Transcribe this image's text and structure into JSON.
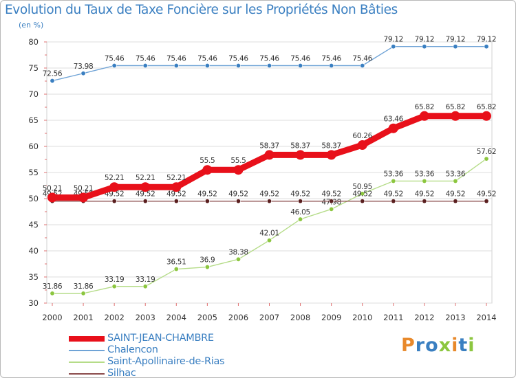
{
  "title": "Evolution du Taux de Taxe Foncière sur les Propriétés Non Bâties",
  "unit_label": "(en %)",
  "brand": {
    "text": "Proxiti",
    "letters": [
      {
        "ch": "P",
        "color": "#e8892b"
      },
      {
        "ch": "r",
        "color": "#3a7fc1"
      },
      {
        "ch": "o",
        "color": "#3a7fc1"
      },
      {
        "ch": "x",
        "color": "#8cc63f"
      },
      {
        "ch": "i",
        "color": "#e8892b"
      },
      {
        "ch": "t",
        "color": "#3a7fc1"
      },
      {
        "ch": "i",
        "color": "#8cc63f"
      }
    ]
  },
  "chart_data": {
    "type": "line",
    "title": "Evolution du Taux de Taxe Foncière sur les Propriétés Non Bâties",
    "ylabel": "(en %)",
    "xlabel": "",
    "ylim": [
      30,
      80
    ],
    "yticks": [
      30,
      35,
      40,
      45,
      50,
      55,
      60,
      65,
      70,
      75,
      80
    ],
    "categories": [
      "2000",
      "2001",
      "2002",
      "2003",
      "2004",
      "2005",
      "2006",
      "2007",
      "2008",
      "2009",
      "2010",
      "2011",
      "2012",
      "2013",
      "2014"
    ],
    "grid": "horizontal",
    "legend_position": "bottom-left",
    "series": [
      {
        "name": "Chalencon",
        "color": "#6fa3d6",
        "marker": "#3a7fc1",
        "values": [
          72.56,
          73.98,
          75.46,
          75.46,
          75.46,
          75.46,
          75.46,
          75.46,
          75.46,
          75.46,
          75.46,
          79.12,
          79.12,
          79.12,
          79.12
        ],
        "labels": [
          "72.56",
          "73.98",
          "75.46",
          "75.46",
          "75.46",
          "75.46",
          "75.46",
          "75.46",
          "75.46",
          "75.46",
          "75.46",
          "79.12",
          "79.12",
          "79.12",
          "79.12"
        ]
      },
      {
        "name": "Saint-Apollinaire-de-Rias",
        "color": "#b5dc88",
        "marker": "#8cc63f",
        "values": [
          31.86,
          31.86,
          33.19,
          33.19,
          36.51,
          36.9,
          38.38,
          42.01,
          46.05,
          47.98,
          50.95,
          53.36,
          53.36,
          53.36,
          57.62
        ],
        "labels": [
          "31.86",
          "31.86",
          "33.19",
          "33.19",
          "36.51",
          "36.9",
          "38.38",
          "42.01",
          "46.05",
          "47.98",
          "50.95",
          "53.36",
          "53.36",
          "53.36",
          "57.62"
        ]
      },
      {
        "name": "Silhac",
        "color": "#8a4a4a",
        "marker": "#5a1f1f",
        "values": [
          49.52,
          49.52,
          49.52,
          49.52,
          49.52,
          49.52,
          49.52,
          49.52,
          49.52,
          49.52,
          49.52,
          49.52,
          49.52,
          49.52,
          49.52
        ],
        "labels": [
          "49.52",
          "49.52",
          "49.52",
          "49.52",
          "49.52",
          "49.52",
          "49.52",
          "49.52",
          "49.52",
          "49.52",
          "49.52",
          "49.52",
          "49.52",
          "49.52",
          "49.52"
        ]
      },
      {
        "name": "SAINT-JEAN-CHAMBRE",
        "color": "#e8101a",
        "marker": "#e8101a",
        "values": [
          50.21,
          50.21,
          52.21,
          52.21,
          52.21,
          55.5,
          55.5,
          58.37,
          58.37,
          58.37,
          60.26,
          63.46,
          65.82,
          65.82,
          65.82
        ],
        "labels": [
          "50.21",
          "50.21",
          "52.21",
          "52.21",
          "52.21",
          "55.5",
          "55.5",
          "58.37",
          "58.37",
          "58.37",
          "60.26",
          "63.46",
          "65.82",
          "65.82",
          "65.82"
        ]
      }
    ],
    "legend": [
      {
        "name": "SAINT-JEAN-CHAMBRE",
        "color": "#e8101a"
      },
      {
        "name": "Chalencon",
        "color": "#6fa3d6"
      },
      {
        "name": "Saint-Apollinaire-de-Rias",
        "color": "#b5dc88"
      },
      {
        "name": "Silhac",
        "color": "#8a4a4a"
      }
    ]
  }
}
